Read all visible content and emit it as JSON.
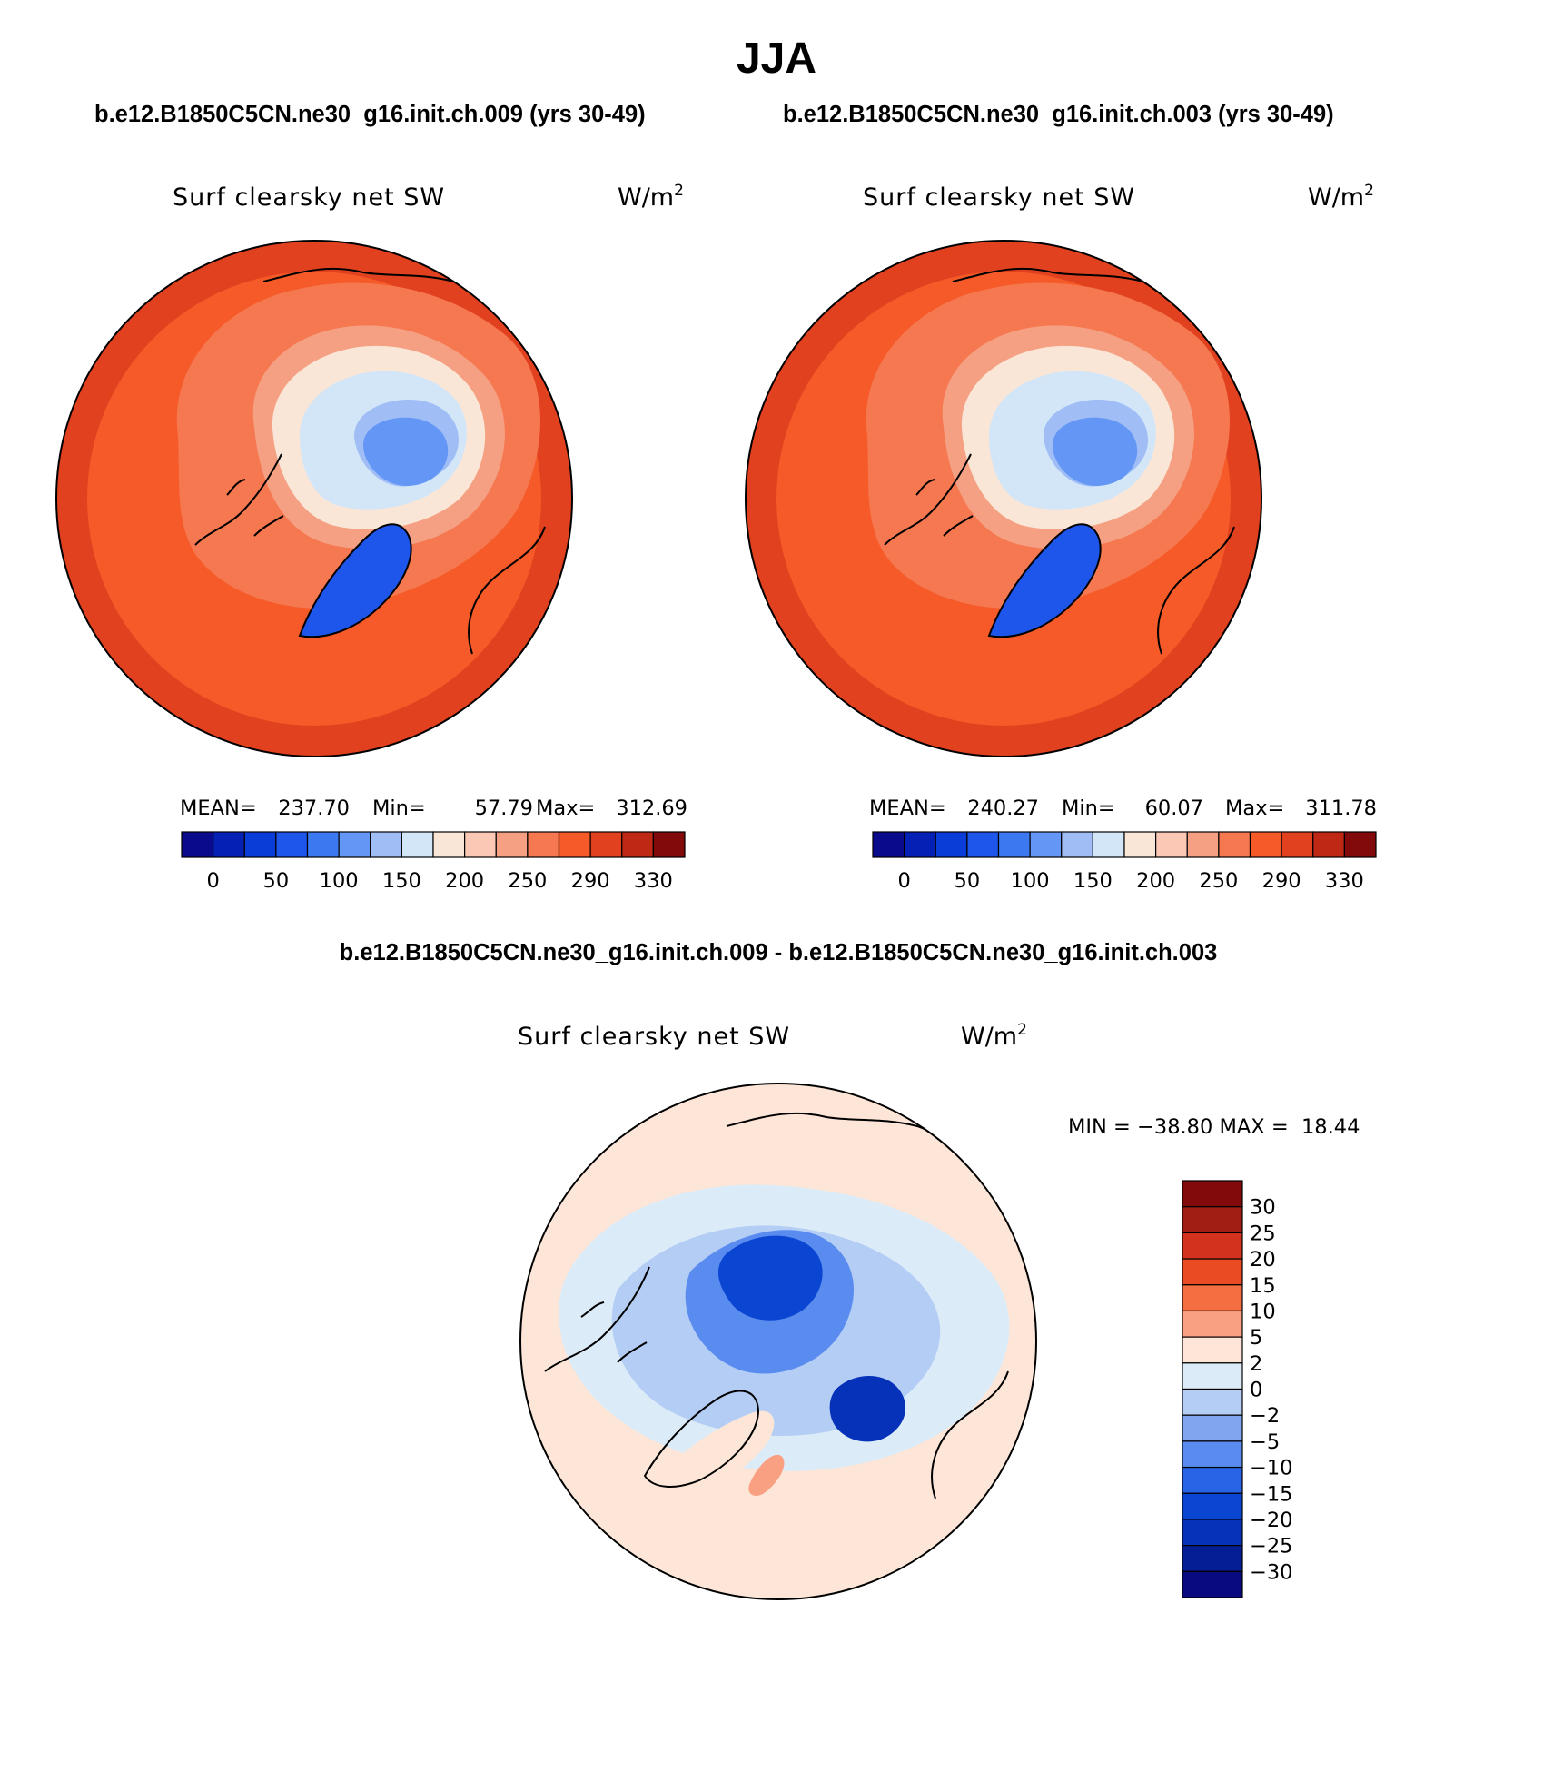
{
  "figure": {
    "season": "JJA",
    "top_label_left": "b.e12.B1850C5CN.ne30_g16.init.ch.009 (yrs 30-49)",
    "top_label_right": "b.e12.B1850C5CN.ne30_g16.init.ch.003 (yrs 30-49)",
    "diff_label": "b.e12.B1850C5CN.ne30_g16.init.ch.009 - b.e12.B1850C5CN.ne30_g16.init.ch.003"
  },
  "chart_data": [
    {
      "type": "heatmap",
      "projection": "north polar stereographic",
      "variable": "Surf clearsky net SW",
      "units": "W/m",
      "units_superscript": "2",
      "stats": {
        "mean_label": "MEAN=",
        "mean": "237.70",
        "min_label": "Min=",
        "min": "57.79",
        "max_label": "Max=",
        "max": "312.69"
      },
      "colorbar": {
        "orientation": "horizontal",
        "levels": [
          0,
          25,
          50,
          75,
          100,
          125,
          150,
          175,
          200,
          225,
          250,
          270,
          290,
          310,
          330
        ],
        "tick_labels": [
          "0",
          "50",
          "100",
          "150",
          "200",
          "250",
          "290",
          "330"
        ],
        "colors": [
          "#0a0a8c",
          "#0520b4",
          "#0a3cd7",
          "#1e55eb",
          "#3c78f0",
          "#6496f5",
          "#a0bef5",
          "#d2e6f8",
          "#fae6d7",
          "#fac8b4",
          "#f5a082",
          "#f57850",
          "#f55a28",
          "#e1411e",
          "#be2814",
          "#820a0a"
        ]
      }
    },
    {
      "type": "heatmap",
      "projection": "north polar stereographic",
      "variable": "Surf clearsky net SW",
      "units": "W/m",
      "units_superscript": "2",
      "stats": {
        "mean_label": "MEAN=",
        "mean": "240.27",
        "min_label": "Min=",
        "min": "60.07",
        "max_label": "Max=",
        "max": "311.78"
      },
      "colorbar": {
        "orientation": "horizontal",
        "levels": [
          0,
          25,
          50,
          75,
          100,
          125,
          150,
          175,
          200,
          225,
          250,
          270,
          290,
          310,
          330
        ],
        "tick_labels": [
          "0",
          "50",
          "100",
          "150",
          "200",
          "250",
          "290",
          "330"
        ],
        "colors": [
          "#0a0a8c",
          "#0520b4",
          "#0a3cd7",
          "#1e55eb",
          "#3c78f0",
          "#6496f5",
          "#a0bef5",
          "#d2e6f8",
          "#fae6d7",
          "#fac8b4",
          "#f5a082",
          "#f57850",
          "#f55a28",
          "#e1411e",
          "#be2814",
          "#820a0a"
        ]
      }
    },
    {
      "type": "heatmap",
      "projection": "north polar stereographic",
      "variable": "Surf clearsky net SW",
      "units": "W/m",
      "units_superscript": "2",
      "stats_text": "MIN = −38.80 MAX =  18.44",
      "colorbar": {
        "orientation": "vertical",
        "levels": [
          -30,
          -25,
          -20,
          -15,
          -10,
          -5,
          -2,
          0,
          2,
          5,
          10,
          15,
          20,
          25,
          30
        ],
        "tick_labels": [
          "30",
          "25",
          "20",
          "15",
          "10",
          "5",
          "2",
          "0",
          "−2",
          "−5",
          "−10",
          "−15",
          "−20",
          "−25",
          "−30"
        ],
        "colors": [
          "#820a0a",
          "#a01e14",
          "#d2321e",
          "#eb4b23",
          "#f56e41",
          "#faa082",
          "#fde6d7",
          "#dcebf8",
          "#b4cdf5",
          "#82a5f0",
          "#5a8cf0",
          "#2864e6",
          "#0a46d2",
          "#0532b9",
          "#051e96",
          "#0a0a80"
        ]
      }
    }
  ]
}
